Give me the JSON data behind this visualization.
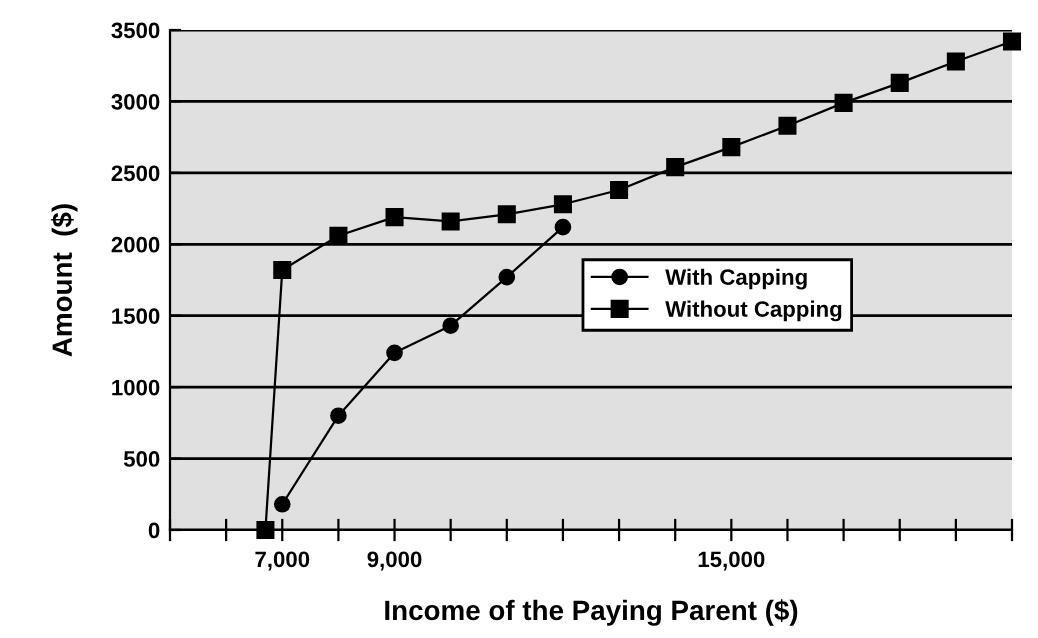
{
  "chart_data": {
    "type": "line",
    "xlabel": "Income of the Paying Parent ($)",
    "ylabel": "Amount  ($)",
    "series": [
      {
        "name": "With Capping",
        "color": "#000000",
        "marker": "circle",
        "x": [
          7000,
          8000,
          9000,
          10000,
          11000,
          12000
        ],
        "values": [
          180,
          800,
          1240,
          1430,
          1770,
          2120
        ]
      },
      {
        "name": "Without Capping",
        "color": "#000000",
        "marker": "square",
        "x": [
          6700,
          7000,
          8000,
          9000,
          10000,
          11000,
          12000,
          13000,
          14000,
          15000,
          16000,
          17000,
          18000,
          19000,
          20000
        ],
        "values": [
          0,
          1820,
          2060,
          2190,
          2160,
          2210,
          2280,
          2380,
          2540,
          2680,
          2830,
          2990,
          3130,
          3280,
          3420
        ]
      }
    ],
    "xlim": [
      5000,
      20000
    ],
    "xticks": [
      {
        "value": 5000,
        "label": null
      },
      {
        "value": 6000,
        "label": null
      },
      {
        "value": 7000,
        "label": "7,000"
      },
      {
        "value": 8000,
        "label": null
      },
      {
        "value": 9000,
        "label": "9,000"
      },
      {
        "value": 10000,
        "label": null
      },
      {
        "value": 11000,
        "label": null
      },
      {
        "value": 12000,
        "label": null
      },
      {
        "value": 13000,
        "label": null
      },
      {
        "value": 14000,
        "label": null
      },
      {
        "value": 15000,
        "label": "15,000"
      },
      {
        "value": 16000,
        "label": null
      },
      {
        "value": 17000,
        "label": null
      },
      {
        "value": 18000,
        "label": null
      },
      {
        "value": 19000,
        "label": null
      },
      {
        "value": 20000,
        "label": null
      }
    ],
    "ylim": [
      0,
      3500
    ],
    "yticks": [
      0,
      500,
      1000,
      1500,
      2000,
      2500,
      3000,
      3500
    ],
    "grid": "y",
    "legend": "center",
    "line_style": "solid"
  }
}
